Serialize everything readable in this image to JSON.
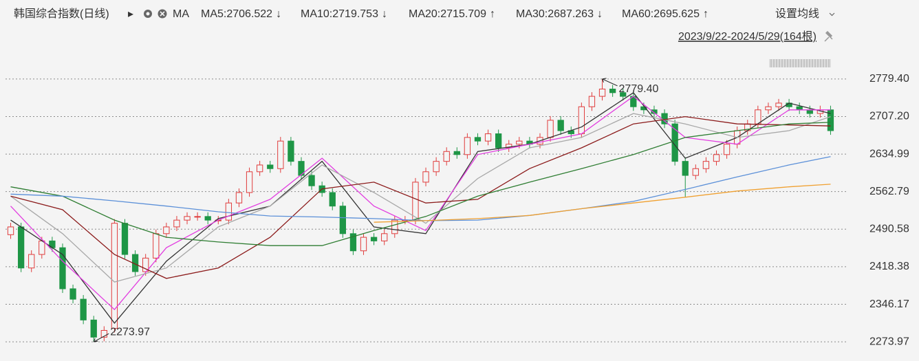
{
  "chart_data": {
    "type": "candlestick",
    "title": "韩国综合指数(日线)",
    "ma_toggle": "MA",
    "settings_label": "设置均线",
    "range_label": "2023/9/22-2024/5/29(164根)",
    "up_color": "#e03c3c",
    "down_color": "#1e9646",
    "ylim": [
      2257,
      2799
    ],
    "yticks": [
      {
        "value": 2779.4,
        "label": "2779.40"
      },
      {
        "value": 2707.2,
        "label": "2707.20"
      },
      2634.99,
      2562.79,
      2490.58,
      2418.38,
      2346.17,
      2273.97
    ],
    "grid": true,
    "high_label": "2779.40",
    "low_label": "2273.97",
    "candles": {
      "open": [
        2480,
        2495,
        2416,
        2442,
        2468,
        2455,
        2376,
        2356,
        2316,
        2283,
        2300,
        2502,
        2442,
        2409,
        2435,
        2482,
        2495,
        2508,
        2515,
        2515,
        2508,
        2508,
        2541,
        2561,
        2601,
        2614,
        2607,
        2660,
        2621,
        2594,
        2574,
        2561,
        2535,
        2482,
        2449,
        2475,
        2468,
        2482,
        2508,
        2508,
        2581,
        2601,
        2621,
        2640,
        2634,
        2667,
        2660,
        2674,
        2647,
        2654,
        2660,
        2654,
        2667,
        2700,
        2680,
        2674,
        2726,
        2746,
        2760,
        2753,
        2746,
        2726,
        2720,
        2713,
        2693,
        2621,
        2594,
        2607,
        2621,
        2634,
        2654,
        2680,
        2693,
        2720,
        2726,
        2733,
        2726,
        2720,
        2713,
        2720
      ],
      "high": [
        2503,
        2503,
        2450,
        2476,
        2476,
        2463,
        2384,
        2364,
        2324,
        2304,
        2510,
        2510,
        2450,
        2443,
        2490,
        2503,
        2516,
        2523,
        2523,
        2523,
        2516,
        2549,
        2569,
        2609,
        2622,
        2622,
        2668,
        2668,
        2629,
        2602,
        2582,
        2569,
        2543,
        2490,
        2483,
        2483,
        2490,
        2516,
        2516,
        2589,
        2609,
        2629,
        2648,
        2648,
        2675,
        2675,
        2682,
        2682,
        2662,
        2668,
        2668,
        2675,
        2708,
        2708,
        2688,
        2734,
        2754,
        2779.4,
        2768,
        2761,
        2754,
        2734,
        2728,
        2721,
        2701,
        2629,
        2615,
        2629,
        2642,
        2662,
        2688,
        2701,
        2728,
        2734,
        2741,
        2741,
        2734,
        2728,
        2728,
        2728
      ],
      "low": [
        2472,
        2408,
        2408,
        2434,
        2447,
        2368,
        2348,
        2308,
        2273.97,
        2275,
        2292,
        2434,
        2401,
        2401,
        2427,
        2474,
        2487,
        2500,
        2507,
        2500,
        2500,
        2500,
        2533,
        2553,
        2593,
        2599,
        2599,
        2613,
        2586,
        2566,
        2553,
        2527,
        2474,
        2441,
        2441,
        2460,
        2460,
        2474,
        2500,
        2500,
        2573,
        2593,
        2613,
        2626,
        2626,
        2652,
        2652,
        2639,
        2639,
        2646,
        2646,
        2646,
        2659,
        2672,
        2666,
        2666,
        2718,
        2738,
        2745,
        2738,
        2718,
        2712,
        2705,
        2685,
        2613,
        2552,
        2586,
        2599,
        2613,
        2626,
        2646,
        2672,
        2685,
        2712,
        2718,
        2718,
        2712,
        2705,
        2705,
        2672
      ],
      "close": [
        2495,
        2416,
        2442,
        2468,
        2455,
        2376,
        2356,
        2316,
        2283,
        2296,
        2502,
        2442,
        2409,
        2435,
        2482,
        2495,
        2508,
        2515,
        2515,
        2508,
        2508,
        2541,
        2561,
        2601,
        2614,
        2607,
        2660,
        2621,
        2594,
        2574,
        2561,
        2535,
        2482,
        2449,
        2475,
        2468,
        2482,
        2508,
        2508,
        2581,
        2601,
        2621,
        2640,
        2634,
        2667,
        2660,
        2674,
        2647,
        2654,
        2660,
        2654,
        2667,
        2700,
        2680,
        2674,
        2726,
        2746,
        2760,
        2753,
        2746,
        2726,
        2720,
        2713,
        2693,
        2621,
        2594,
        2607,
        2621,
        2634,
        2654,
        2680,
        2693,
        2720,
        2726,
        2733,
        2726,
        2720,
        2713,
        2720,
        2680
      ]
    },
    "ma_x": [
      0,
      5,
      10,
      15,
      20,
      25,
      30,
      35,
      40,
      45,
      50,
      55,
      60,
      65,
      70,
      75,
      79
    ],
    "series": [
      {
        "label": "MA5:2706.522",
        "arrow": "↓",
        "color": "#333333",
        "values": [
          2508,
          2442,
          2310,
          2429,
          2511,
          2535,
          2621,
          2495,
          2482,
          2640,
          2654,
          2687,
          2753,
          2627,
          2667,
          2733,
          2713
        ]
      },
      {
        "label": "MA10:2719.753",
        "arrow": "↓",
        "color": "#e23ce0",
        "values": [
          2535,
          2429,
          2336,
          2455,
          2508,
          2548,
          2627,
          2535,
          2488,
          2634,
          2654,
          2674,
          2746,
          2667,
          2654,
          2720,
          2720
        ]
      },
      {
        "label": "MA20:2715.709",
        "arrow": "↑",
        "color": "#a8a8a8",
        "values": [
          2554,
          2482,
          2389,
          2416,
          2495,
          2535,
          2614,
          2561,
          2502,
          2588,
          2647,
          2667,
          2713,
          2693,
          2667,
          2680,
          2707
        ]
      },
      {
        "label": "MA30:2687.263",
        "arrow": "↓",
        "color": "#8b1a1a",
        "values": [
          2554,
          2528,
          2442,
          2396,
          2416,
          2475,
          2568,
          2581,
          2541,
          2548,
          2607,
          2647,
          2693,
          2707,
          2693,
          2691,
          2689
        ]
      },
      {
        "label": "MA60:2695.625",
        "arrow": "↑",
        "color": "#2e7d32",
        "values": [
          2572,
          2554,
          2508,
          2475,
          2466,
          2459,
          2459,
          2488,
          2515,
          2554,
          2581,
          2607,
          2634,
          2667,
          2680,
          2693,
          2696
        ]
      },
      {
        "color": "#5a8fd8",
        "values": [
          2558,
          2554,
          2545,
          2535,
          2524,
          2516,
          2514,
          2511,
          2507,
          2508,
          2517,
          2530,
          2544,
          2567,
          2591,
          2614,
          2630
        ]
      },
      {
        "color": "#f0a030",
        "values": [
          null,
          null,
          null,
          null,
          null,
          null,
          null,
          2504,
          2507,
          2511,
          2517,
          2530,
          2541,
          2552,
          2564,
          2572,
          2577
        ]
      }
    ]
  }
}
